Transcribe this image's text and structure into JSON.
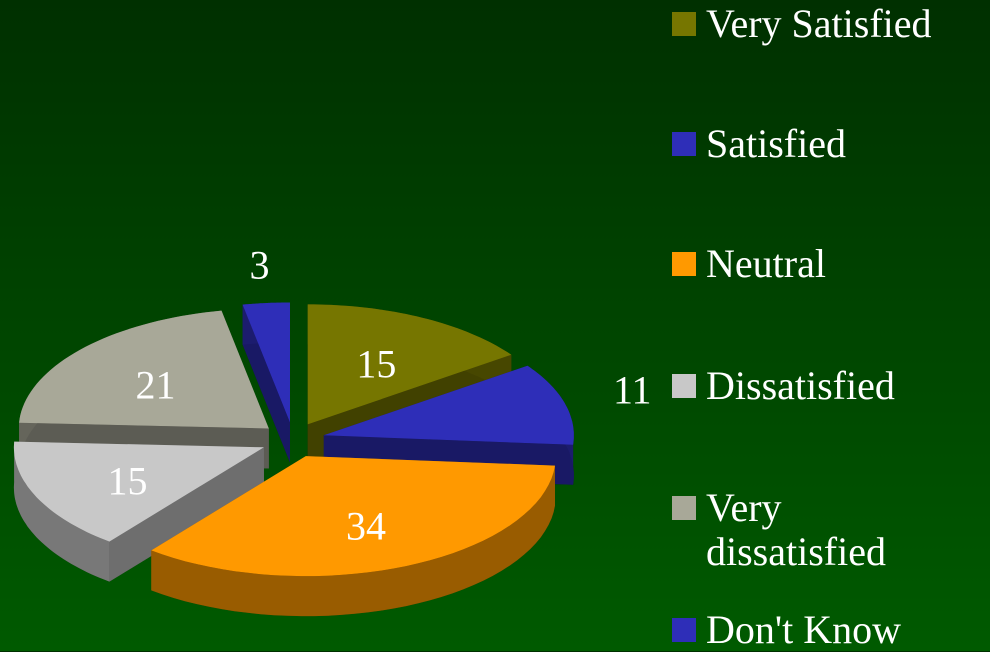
{
  "chart_data": {
    "type": "pie3d",
    "categories": [
      "Very Satisfied",
      "Satisfied",
      "Neutral",
      "Dissatisfied",
      "Very dissatisfied",
      "Don't Know"
    ],
    "values": [
      15,
      11,
      34,
      15,
      21,
      3
    ],
    "colors": [
      "#767600",
      "#2e2eb8",
      "#ff9900",
      "#c8c8c8",
      "#a8a898",
      "#2e2eb8"
    ],
    "legend": "right"
  }
}
